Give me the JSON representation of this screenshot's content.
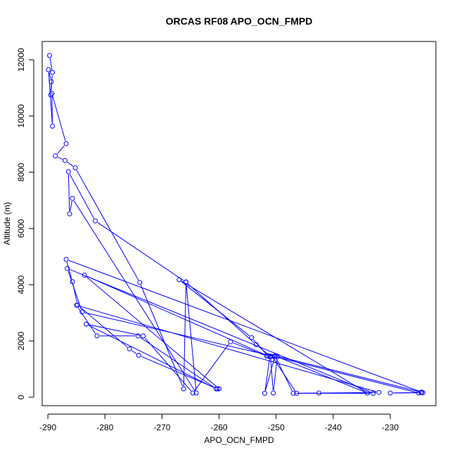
{
  "chart_data": {
    "type": "scatter",
    "title": "ORCAS RF08 APO_OCN_FMPD",
    "xlabel": "APO_OCN_FMPD",
    "ylabel": "Altitude (m)",
    "xlim": [
      -291,
      -222
    ],
    "ylim": [
      -300,
      12650
    ],
    "x_ticks": [
      -290,
      -280,
      -270,
      -260,
      -250,
      -240,
      -230
    ],
    "y_ticks": [
      0,
      2000,
      4000,
      6000,
      8000,
      10000,
      12000
    ],
    "colors": {
      "series": "#0000ff",
      "axes": "#000000"
    },
    "series": [
      {
        "x": [
          -289.7,
          -289.2,
          -289.5,
          -289.4,
          -289.9,
          -289.2,
          -289.3,
          -286.8,
          -288.7,
          -287.0,
          -285.2,
          -273.9,
          -266.2,
          -265.8,
          -264.0,
          -285.7,
          -286.2,
          -286.4,
          -281.7,
          -265.8,
          -253.5,
          -251.0,
          -250.5,
          -249.8,
          -234.0,
          -267.0,
          -254.3,
          -251.5,
          -250.0,
          -224.5,
          -286.8,
          -285.7,
          -284.8,
          -275.7,
          -274.1,
          -260.3,
          -260.0,
          -283.6,
          -251.1,
          -252.0,
          -250.2,
          -247.0,
          -242.5,
          -232.0,
          -285.0,
          -281.4,
          -274.2,
          -260.5,
          -283.3,
          -273.3,
          -264.6,
          -258.0,
          -251.7,
          -251.0,
          -250.7,
          -246.4,
          -233.0,
          -286.6,
          -284.0,
          -250.3,
          -225.0,
          -224.6,
          -230.0,
          -224.3
        ],
        "y": [
          12150,
          11550,
          10750,
          11220,
          11650,
          9640,
          10800,
          9020,
          8580,
          8420,
          8160,
          4080,
          300,
          4100,
          150,
          7070,
          6520,
          8020,
          6270,
          4090,
          1870,
          1460,
          150,
          1440,
          150,
          4180,
          2120,
          1480,
          1470,
          180,
          4900,
          4110,
          3280,
          1720,
          1490,
          300,
          300,
          4340,
          1440,
          140,
          1470,
          140,
          150,
          170,
          3270,
          2180,
          2180,
          300,
          2600,
          2180,
          150,
          1970,
          1470,
          1460,
          1450,
          140,
          140,
          4580,
          3030,
          1450,
          150,
          170,
          150,
          160
        ]
      }
    ]
  }
}
